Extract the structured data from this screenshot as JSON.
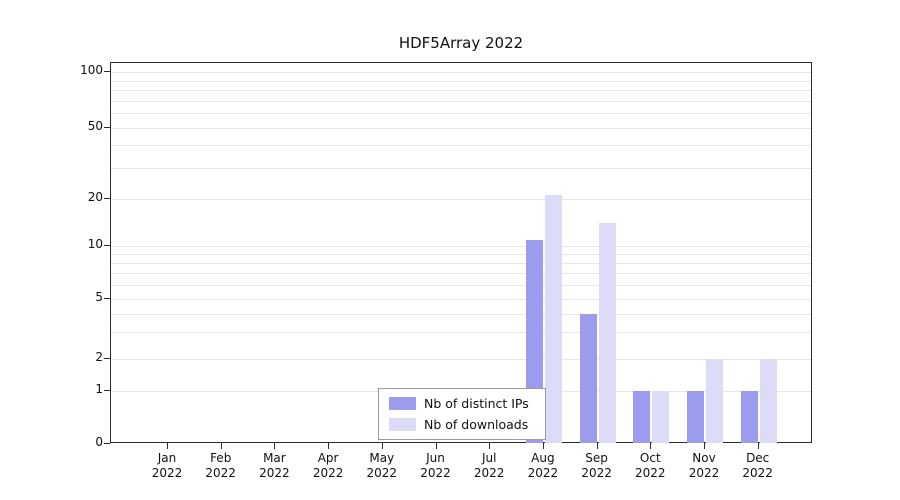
{
  "chart_data": {
    "type": "bar",
    "title": "HDF5Array 2022",
    "categories": [
      "Jan",
      "Feb",
      "Mar",
      "Apr",
      "May",
      "Jun",
      "Jul",
      "Aug",
      "Sep",
      "Oct",
      "Nov",
      "Dec"
    ],
    "year_label": "2022",
    "series": [
      {
        "name": "Nb of distinct IPs",
        "color": "#9c9cee",
        "values": [
          0,
          0,
          0,
          0,
          0,
          0,
          0,
          11,
          4,
          1,
          1,
          1
        ]
      },
      {
        "name": "Nb of downloads",
        "color": "#dcdcf8",
        "values": [
          0,
          0,
          0,
          0,
          0,
          0,
          0,
          21,
          14,
          1,
          2,
          2
        ]
      }
    ],
    "yticks": [
      0,
      1,
      2,
      5,
      10,
      20,
      50,
      100
    ],
    "minor_gridlines": [
      3,
      4,
      6,
      7,
      8,
      9,
      30,
      40,
      60,
      70,
      80,
      90
    ],
    "ylim": [
      0,
      100
    ],
    "yscale": "log-with-zero",
    "grid": "horizontal",
    "legend_position": "bottom-center",
    "colors": {
      "grid": "#e7e7e7",
      "axis": "#2b2b2b",
      "background": "#ffffff"
    }
  }
}
